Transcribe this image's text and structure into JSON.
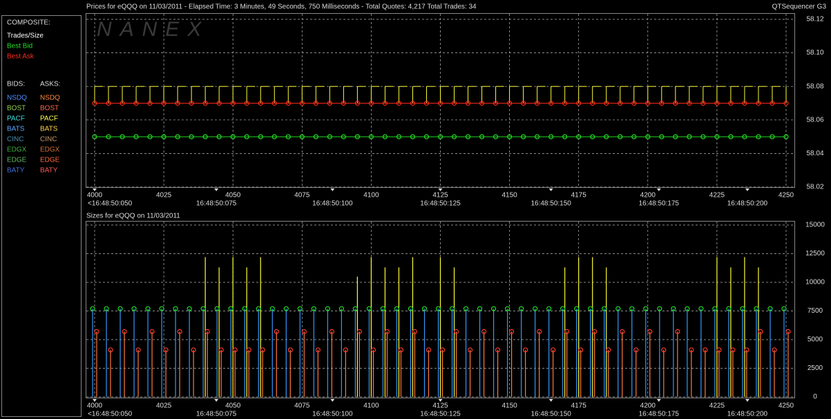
{
  "app_label": "QTSequencer G3",
  "watermark": "NANEX",
  "sidebar": {
    "composite_label": "COMPOSITE:",
    "bids_label": "BIDS:",
    "asks_label": "ASKS:",
    "bids": [
      {
        "name": "NSDQ",
        "color": "#4f8cff"
      },
      {
        "name": "BOST",
        "color": "#8fd14f"
      },
      {
        "name": "PACF",
        "color": "#3fe0e0"
      },
      {
        "name": "BATS",
        "color": "#5aa8ff"
      },
      {
        "name": "CINC",
        "color": "#4a90b0"
      },
      {
        "name": "EDGX",
        "color": "#3fae3f"
      },
      {
        "name": "EDGE",
        "color": "#5cb85c"
      },
      {
        "name": "BATY",
        "color": "#3f6fd8"
      }
    ],
    "asks": [
      {
        "name": "NSDQ",
        "color": "#ff8a3a"
      },
      {
        "name": "BOST",
        "color": "#ff6a4a"
      },
      {
        "name": "PACF",
        "color": "#ffff55"
      },
      {
        "name": "BATS",
        "color": "#ffd24a"
      },
      {
        "name": "CINC",
        "color": "#c89a6a"
      },
      {
        "name": "EDGX",
        "color": "#d0703a"
      },
      {
        "name": "EDGE",
        "color": "#ff6a3a"
      },
      {
        "name": "BATY",
        "color": "#ff5555"
      }
    ]
  },
  "chart_data": [
    {
      "type": "line",
      "title": "Prices for  eQQQ  on  11/03/2011  -  Elapsed Time: 3 Minutes, 49 Seconds, 750 Milliseconds  -  Total Quotes: 4,217  Total Trades: 34",
      "x": [
        4000,
        4005,
        4010,
        4015,
        4020,
        4025,
        4030,
        4035,
        4040,
        4045,
        4050,
        4055,
        4060,
        4065,
        4070,
        4075,
        4080,
        4085,
        4090,
        4095,
        4100,
        4105,
        4110,
        4115,
        4120,
        4125,
        4130,
        4135,
        4140,
        4145,
        4150,
        4155,
        4160,
        4165,
        4170,
        4175,
        4180,
        4185,
        4190,
        4195,
        4200,
        4205,
        4210,
        4215,
        4220,
        4225,
        4230,
        4235,
        4240,
        4245,
        4250
      ],
      "series": [
        {
          "name": "Trades/Size",
          "color": "#ffff33",
          "style": "spike",
          "values": [
            58.08,
            58.08,
            58.08,
            58.08,
            58.08,
            58.08,
            58.08,
            58.08,
            58.08,
            58.08,
            58.08,
            58.08,
            58.08,
            58.08,
            58.08,
            58.08,
            58.08,
            58.08,
            58.08,
            58.08,
            58.08,
            58.08,
            58.08,
            58.08,
            58.08,
            58.08,
            58.08,
            58.08,
            58.08,
            58.08,
            58.08,
            58.08,
            58.08,
            58.08,
            58.08,
            58.08,
            58.08,
            58.08,
            58.08,
            58.08,
            58.08,
            58.08,
            58.08,
            58.08,
            58.08,
            58.08,
            58.08,
            58.08,
            58.08,
            58.08,
            58.08
          ]
        },
        {
          "name": "Best Bid",
          "color": "#22dd22",
          "style": "line-dots",
          "values": [
            58.05,
            58.05,
            58.05,
            58.05,
            58.05,
            58.05,
            58.05,
            58.05,
            58.05,
            58.05,
            58.05,
            58.05,
            58.05,
            58.05,
            58.05,
            58.05,
            58.05,
            58.05,
            58.05,
            58.05,
            58.05,
            58.05,
            58.05,
            58.05,
            58.05,
            58.05,
            58.05,
            58.05,
            58.05,
            58.05,
            58.05,
            58.05,
            58.05,
            58.05,
            58.05,
            58.05,
            58.05,
            58.05,
            58.05,
            58.05,
            58.05,
            58.05,
            58.05,
            58.05,
            58.05,
            58.05,
            58.05,
            58.05,
            58.05,
            58.05,
            58.05
          ]
        },
        {
          "name": "Best Ask",
          "color": "#ff2a1a",
          "style": "line-dots",
          "values": [
            58.07,
            58.07,
            58.07,
            58.07,
            58.07,
            58.07,
            58.07,
            58.07,
            58.07,
            58.07,
            58.07,
            58.07,
            58.07,
            58.07,
            58.07,
            58.07,
            58.07,
            58.07,
            58.07,
            58.07,
            58.07,
            58.07,
            58.07,
            58.07,
            58.07,
            58.07,
            58.07,
            58.07,
            58.07,
            58.07,
            58.07,
            58.07,
            58.07,
            58.07,
            58.07,
            58.07,
            58.07,
            58.07,
            58.07,
            58.07,
            58.07,
            58.07,
            58.07,
            58.07,
            58.07,
            58.07,
            58.07,
            58.07,
            58.07,
            58.07,
            58.07
          ]
        }
      ],
      "xlim": [
        3997,
        4253
      ],
      "xticks": [
        4000,
        4025,
        4050,
        4075,
        4100,
        4125,
        4150,
        4175,
        4200,
        4225,
        4250
      ],
      "time_ticks": [
        {
          "value": 4000,
          "label": "<16:48:50:050"
        },
        {
          "value": 4044,
          "label": "16:48:50:075"
        },
        {
          "value": 4086,
          "label": "16:48:50:100"
        },
        {
          "value": 4125,
          "label": "16:48:50:125"
        },
        {
          "value": 4165,
          "label": "16:48:50:150"
        },
        {
          "value": 4204,
          "label": "16:48:50:175"
        },
        {
          "value": 4236,
          "label": "16:48:50:200"
        }
      ],
      "ylim": [
        58.02,
        58.12
      ],
      "yticks": [
        58.02,
        58.04,
        58.06,
        58.08,
        {
          "value": 58.1,
          "label": "58.10"
        },
        58.12
      ],
      "grid": true
    },
    {
      "type": "bar",
      "title": "Sizes for  eQQQ  on  11/03/2011",
      "x": [
        4000,
        4005,
        4010,
        4015,
        4020,
        4025,
        4030,
        4035,
        4040,
        4045,
        4050,
        4055,
        4060,
        4065,
        4070,
        4075,
        4080,
        4085,
        4090,
        4095,
        4100,
        4105,
        4110,
        4115,
        4120,
        4125,
        4130,
        4135,
        4140,
        4145,
        4150,
        4155,
        4160,
        4165,
        4170,
        4175,
        4180,
        4185,
        4190,
        4195,
        4200,
        4205,
        4210,
        4215,
        4220,
        4225,
        4230,
        4235,
        4240,
        4245,
        4250
      ],
      "series": [
        {
          "color": "#ffff33",
          "values": [
            null,
            null,
            null,
            null,
            null,
            null,
            null,
            null,
            12200,
            11300,
            12200,
            11300,
            12200,
            null,
            null,
            null,
            null,
            null,
            null,
            10500,
            12200,
            11300,
            11300,
            12200,
            null,
            12200,
            11300,
            null,
            null,
            null,
            null,
            null,
            null,
            null,
            11300,
            12200,
            12200,
            11300,
            null,
            null,
            null,
            null,
            null,
            null,
            null,
            12200,
            11300,
            12200,
            11300,
            null,
            null
          ]
        },
        {
          "color": "#3399ff",
          "marker_color": "#22dd22",
          "values": [
            7700,
            7700,
            7700,
            7700,
            7700,
            7700,
            7700,
            7700,
            7700,
            7700,
            7700,
            7700,
            7700,
            7700,
            7700,
            7700,
            7700,
            7700,
            7700,
            7700,
            7700,
            7700,
            7700,
            7700,
            7700,
            7700,
            7700,
            7700,
            7700,
            7700,
            7700,
            7700,
            7700,
            7700,
            7700,
            7700,
            7700,
            7700,
            7700,
            7700,
            7700,
            7700,
            7700,
            7700,
            7700,
            7700,
            7700,
            7700,
            7700,
            7700,
            7700
          ]
        },
        {
          "color": "#ff7a3a",
          "marker_color": "#ff3a2a",
          "values": [
            5700,
            4100,
            5700,
            4100,
            5700,
            4100,
            5700,
            4100,
            5700,
            4100,
            4100,
            4100,
            4100,
            5700,
            4100,
            5700,
            4100,
            5700,
            4100,
            5700,
            4100,
            5700,
            4100,
            5700,
            4100,
            4100,
            5700,
            4100,
            5700,
            4100,
            5700,
            4100,
            5700,
            4100,
            5700,
            4100,
            5700,
            4100,
            5700,
            4100,
            5700,
            4100,
            5700,
            4100,
            4100,
            4100,
            4100,
            4100,
            5700,
            4100,
            5700
          ]
        }
      ],
      "xlim": [
        3997,
        4253
      ],
      "xticks": [
        4000,
        4025,
        4050,
        4075,
        4100,
        4125,
        4150,
        4175,
        4200,
        4225,
        4250
      ],
      "time_ticks": [
        {
          "value": 4000,
          "label": "<16:48:50:050"
        },
        {
          "value": 4044,
          "label": "16:48:50:075"
        },
        {
          "value": 4086,
          "label": "16:48:50:100"
        },
        {
          "value": 4125,
          "label": "16:48:50:125"
        },
        {
          "value": 4165,
          "label": "16:48:50:150"
        },
        {
          "value": 4204,
          "label": "16:48:50:175"
        },
        {
          "value": 4236,
          "label": "16:48:50:200"
        }
      ],
      "ylim": [
        0,
        15000
      ],
      "yticks": [
        0,
        2500,
        5000,
        7500,
        10000,
        12500,
        15000
      ],
      "grid": true
    }
  ]
}
